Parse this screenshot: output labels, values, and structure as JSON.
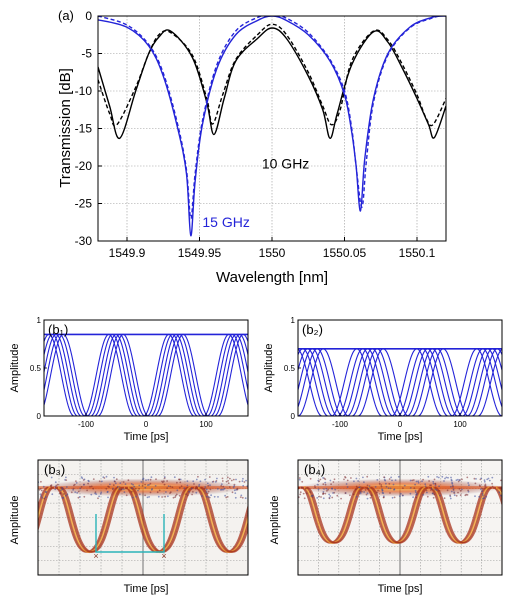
{
  "chart_data": [
    {
      "id": "a",
      "type": "line",
      "panel_label": "(a)",
      "xlabel": "Wavelength [nm]",
      "ylabel": "Transmission [dB]",
      "xlim": [
        1549.88,
        1550.12
      ],
      "ylim": [
        -30,
        0
      ],
      "xticks": [
        1549.9,
        1549.95,
        1550,
        1550.05,
        1550.1
      ],
      "xtick_labels": [
        "1549.9",
        "1549.95",
        "1550",
        "1550.05",
        "1550.1"
      ],
      "yticks": [
        0,
        -5,
        -10,
        -15,
        -20,
        -25,
        -30
      ],
      "ytick_labels": [
        "0",
        "-5",
        "-10",
        "-15",
        "-20",
        "-25",
        "-30"
      ],
      "grid": true,
      "annotations": [
        {
          "text": "10 GHz",
          "x": 1549.993,
          "y": -20.3,
          "color": "#000000"
        },
        {
          "text": "15 GHz",
          "x": 1549.952,
          "y": -28.1,
          "color": "#2424d8"
        }
      ],
      "series": [
        {
          "color": "#000000",
          "style": "solid",
          "x": [
            1549.88,
            1549.888,
            1549.895,
            1549.906,
            1549.915,
            1549.922,
            1549.93,
            1549.945,
            1549.955,
            1549.96,
            1549.967,
            1549.975,
            1549.99,
            1550.0,
            1550.01,
            1550.025,
            1550.035,
            1550.04,
            1550.045,
            1550.055,
            1550.07,
            1550.08,
            1550.09,
            1550.1,
            1550.108,
            1550.112,
            1550.12
          ],
          "y": [
            -6.8,
            -12.0,
            -16.3,
            -10.0,
            -5.0,
            -2.8,
            -2.0,
            -5.5,
            -11.5,
            -15.8,
            -11.0,
            -6.0,
            -3.0,
            -1.6,
            -3.0,
            -8.0,
            -12.5,
            -16.3,
            -13.0,
            -6.5,
            -2.1,
            -3.5,
            -7.0,
            -11.0,
            -14.5,
            -16.2,
            -12.0
          ]
        },
        {
          "color": "#000000",
          "style": "dashed",
          "x": [
            1549.88,
            1549.888,
            1549.893,
            1549.906,
            1549.915,
            1549.922,
            1549.93,
            1549.945,
            1549.955,
            1549.959,
            1549.966,
            1549.975,
            1549.99,
            1550.0,
            1550.01,
            1550.025,
            1550.035,
            1550.041,
            1550.047,
            1550.055,
            1550.07,
            1550.08,
            1550.09,
            1550.1,
            1550.106,
            1550.111,
            1550.12
          ],
          "y": [
            -8.5,
            -13.0,
            -14.5,
            -9.5,
            -5.0,
            -2.5,
            -2.2,
            -5.2,
            -11.0,
            -14.4,
            -10.5,
            -5.8,
            -2.5,
            -1.1,
            -2.5,
            -7.5,
            -12.0,
            -14.5,
            -12.5,
            -6.0,
            -2.0,
            -3.2,
            -6.5,
            -10.5,
            -13.5,
            -14.5,
            -11.0
          ]
        },
        {
          "color": "#2424d8",
          "style": "solid",
          "x": [
            1549.88,
            1549.9,
            1549.915,
            1549.925,
            1549.935,
            1549.941,
            1549.944,
            1549.947,
            1549.952,
            1549.962,
            1549.975,
            1549.99,
            1550.0,
            1550.01,
            1550.025,
            1550.04,
            1550.05,
            1550.055,
            1550.058,
            1550.061,
            1550.064,
            1550.07,
            1550.08,
            1550.095,
            1550.11,
            1550.12
          ],
          "y": [
            -0.5,
            -1.5,
            -4.0,
            -8.0,
            -15.0,
            -21.0,
            -29.3,
            -22.0,
            -14.5,
            -7.0,
            -2.5,
            -0.6,
            0.0,
            -0.6,
            -2.5,
            -6.0,
            -10.5,
            -15.5,
            -20.0,
            -26.0,
            -19.0,
            -11.0,
            -5.0,
            -1.5,
            -0.2,
            0.0
          ]
        },
        {
          "color": "#2424d8",
          "style": "dashed",
          "x": [
            1549.88,
            1549.9,
            1549.915,
            1549.925,
            1549.935,
            1549.941,
            1549.944,
            1549.947,
            1549.952,
            1549.962,
            1549.975,
            1549.99,
            1550.0,
            1550.01,
            1550.025,
            1550.04,
            1550.05,
            1550.055,
            1550.058,
            1550.062,
            1550.065,
            1550.07,
            1550.08,
            1550.095,
            1550.11,
            1550.12
          ],
          "y": [
            0.0,
            -1.2,
            -3.8,
            -7.6,
            -14.5,
            -20.5,
            -27.0,
            -21.0,
            -14.0,
            -6.5,
            -2.0,
            -0.2,
            0.2,
            -0.3,
            -2.2,
            -5.8,
            -10.0,
            -15.0,
            -20.0,
            -25.5,
            -19.5,
            -11.5,
            -5.2,
            -1.6,
            -0.3,
            0.2
          ]
        }
      ]
    },
    {
      "id": "b1",
      "type": "line",
      "panel_label": "(b₁)",
      "xlabel": "Time [ps]",
      "ylabel": "Amplitude",
      "xlim": [
        -170,
        170
      ],
      "ylim": [
        0,
        1
      ],
      "xticks": [
        -100,
        0,
        100
      ],
      "xtick_labels": [
        "-100",
        "0",
        "100"
      ],
      "yticks": [
        0,
        0.5,
        1
      ],
      "ytick_labels": [
        "0",
        "0.5",
        "1"
      ],
      "grid": false,
      "level": 0.85,
      "bit_period_ps": 100,
      "edge_jitter_ps": [
        -12,
        -6,
        0,
        6,
        12
      ],
      "color": "#2424d8"
    },
    {
      "id": "b2",
      "type": "line",
      "panel_label": "(b₂)",
      "xlabel": "Time [ps]",
      "ylabel": "Amplitude",
      "xlim": [
        -170,
        170
      ],
      "ylim": [
        0,
        1
      ],
      "xticks": [
        -100,
        0,
        100
      ],
      "xtick_labels": [
        "-100",
        "0",
        "100"
      ],
      "yticks": [
        0,
        0.5,
        1
      ],
      "ytick_labels": [
        "0",
        "0.5",
        "1"
      ],
      "grid": false,
      "level": 0.7,
      "bit_period_ps": 100,
      "edge_jitter_ps": [
        -22,
        -12,
        -4,
        4,
        12,
        22
      ],
      "color": "#2424d8"
    },
    {
      "id": "b3",
      "type": "heatmap",
      "panel_label": "(b₃)",
      "xlabel": "Time [ps]",
      "ylabel": "Amplitude"
    },
    {
      "id": "b4",
      "type": "heatmap",
      "panel_label": "(b₄)",
      "xlabel": "Time [ps]",
      "ylabel": "Amplitude"
    }
  ]
}
